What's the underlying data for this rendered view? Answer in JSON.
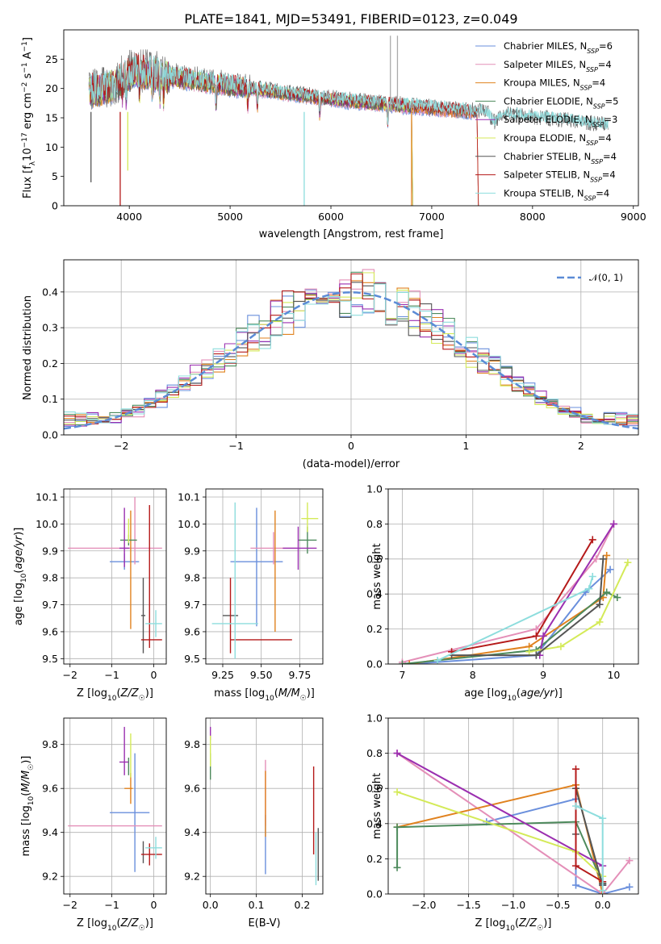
{
  "title": "PLATE=1841, MJD=53491, FIBERID=0123, z=0.049",
  "colors": {
    "Chabrier MILES": "#6a8fdc",
    "Salpeter MILES": "#e48fb8",
    "Kroupa MILES": "#e0821f",
    "Chabrier ELODIE": "#4d8a5c",
    "Salpeter ELODIE": "#9b2fb0",
    "Kroupa ELODIE": "#d4ea58",
    "Chabrier STELIB": "#555555",
    "Salpeter STELIB": "#b51a1a",
    "Kroupa STELIB": "#8ddddd"
  },
  "chart_data": [
    {
      "id": "spectrum",
      "type": "line",
      "xlabel": "wavelength [Angstrom, rest frame]",
      "ylabel": "Flux [f_λ10^-17 erg cm^-2 s^-1 A^-1]",
      "xlim": [
        3350,
        9050
      ],
      "ylim": [
        0,
        30
      ],
      "xticks": [
        4000,
        5000,
        6000,
        7000,
        8000,
        9000
      ],
      "yticks": [
        0,
        5,
        10,
        15,
        20,
        25
      ],
      "grid": false,
      "legend_position": "top-right",
      "data_range": [
        3600,
        8750
      ],
      "continuum_knots": {
        "x": [
          3600,
          3750,
          3850,
          3950,
          4050,
          4200,
          4400,
          4600,
          4800,
          5000,
          5200,
          5400,
          5600,
          5800,
          6000,
          6200,
          6400,
          6600,
          6800,
          7000,
          7200,
          7400,
          7600,
          7800,
          8000,
          8200,
          8400,
          8600,
          8750
        ],
        "y": [
          19.5,
          20.0,
          20.5,
          22.0,
          23.0,
          22.5,
          22.0,
          21.5,
          21.0,
          20.5,
          20.0,
          19.5,
          19.0,
          18.6,
          18.2,
          17.8,
          17.5,
          17.2,
          16.9,
          16.6,
          16.3,
          16.0,
          15.7,
          15.3,
          15.0,
          14.6,
          14.2,
          13.8,
          13.5
        ]
      },
      "series": [
        {
          "name": "Chabrier MILES",
          "legend": "Chabrier MILES, N_SSP=6",
          "end": 7450
        },
        {
          "name": "Salpeter MILES",
          "legend": "Salpeter MILES, N_SSP=4",
          "end": 7450
        },
        {
          "name": "Kroupa MILES",
          "legend": "Kroupa MILES, N_SSP=4",
          "end": 7450
        },
        {
          "name": "Chabrier ELODIE",
          "legend": "Chabrier ELODIE, N_SSP=5",
          "end": 6800
        },
        {
          "name": "Salpeter ELODIE",
          "legend": "Salpeter ELODIE, N_SSP=3",
          "end": 6800
        },
        {
          "name": "Kroupa ELODIE",
          "legend": "Kroupa ELODIE, N_SSP=4",
          "end": 6800
        },
        {
          "name": "Chabrier STELIB",
          "legend": "Chabrier STELIB, N_SSP=4",
          "end": 8750
        },
        {
          "name": "Salpeter STELIB",
          "legend": "Salpeter STELIB, N_SSP=4",
          "end": 7450
        },
        {
          "name": "Kroupa STELIB",
          "legend": "Kroupa STELIB, N_SSP=4",
          "end": 8750
        }
      ]
    },
    {
      "id": "residuals",
      "type": "histogram",
      "xlabel": "(data-model)/error",
      "ylabel": "Normed distribution",
      "xlim": [
        -2.5,
        2.5
      ],
      "ylim": [
        0,
        0.49
      ],
      "xticks": [
        -2,
        -1,
        0,
        1,
        2
      ],
      "yticks": [
        0.0,
        0.1,
        0.2,
        0.3,
        0.4
      ],
      "grid": true,
      "legend_position": "top-right",
      "reference": {
        "label": "𝒩(0, 1)",
        "mu": 0,
        "sigma": 1
      },
      "bins": {
        "start": -2.5,
        "width": 0.1,
        "count": 50
      },
      "series_order": [
        "Chabrier MILES",
        "Salpeter MILES",
        "Kroupa MILES",
        "Chabrier ELODIE",
        "Salpeter ELODIE",
        "Kroupa ELODIE",
        "Chabrier STELIB",
        "Salpeter STELIB",
        "Kroupa STELIB"
      ]
    },
    {
      "id": "z_age",
      "type": "errorbar",
      "xlabel": "Z [log10(Z/Z☉)]",
      "ylabel": "age  [log10(age/yr)]",
      "xlim": [
        -2.15,
        0.3
      ],
      "ylim": [
        9.48,
        10.13
      ],
      "xticks": [
        -2,
        -1,
        0
      ],
      "yticks": [
        9.5,
        9.6,
        9.7,
        9.8,
        9.9,
        10.0,
        10.1
      ],
      "grid": true,
      "points": [
        {
          "series": "Chabrier MILES",
          "x": -0.7,
          "xerr": [
            0.35,
            0.35
          ],
          "y": 9.86,
          "yerr": [
            0.03,
            0.03
          ]
        },
        {
          "series": "Salpeter MILES",
          "x": -0.45,
          "xerr": [
            1.6,
            0.65
          ],
          "y": 9.91,
          "yerr": [
            0.06,
            0.19
          ]
        },
        {
          "series": "Kroupa MILES",
          "x": -0.55,
          "xerr": [
            0.0,
            0.0
          ],
          "y": 9.85,
          "yerr": [
            0.24,
            0.2
          ]
        },
        {
          "series": "Chabrier ELODIE",
          "x": -0.6,
          "xerr": [
            0.2,
            0.2
          ],
          "y": 9.94,
          "yerr": [
            0.02,
            0.02
          ]
        },
        {
          "series": "Salpeter ELODIE",
          "x": -0.7,
          "xerr": [
            0.12,
            0.12
          ],
          "y": 9.91,
          "yerr": [
            0.07,
            0.15
          ]
        },
        {
          "series": "Kroupa ELODIE",
          "x": -0.6,
          "xerr": [
            0.0,
            0.0
          ],
          "y": 9.96,
          "yerr": [
            0.03,
            0.06
          ]
        },
        {
          "series": "Chabrier STELIB",
          "x": -0.25,
          "xerr": [
            0.05,
            0.05
          ],
          "y": 9.66,
          "yerr": [
            0.14,
            0.14
          ]
        },
        {
          "series": "Salpeter STELIB",
          "x": -0.1,
          "xerr": [
            0.2,
            0.3
          ],
          "y": 9.57,
          "yerr": [
            0.03,
            0.5
          ]
        },
        {
          "series": "Kroupa STELIB",
          "x": 0.05,
          "xerr": [
            0.25,
            0.15
          ],
          "y": 9.63,
          "yerr": [
            0.05,
            0.05
          ]
        }
      ]
    },
    {
      "id": "mass_age",
      "type": "errorbar",
      "xlabel": "mass [log10(M/M☉)]",
      "ylabel": "",
      "xlim": [
        9.14,
        9.9
      ],
      "ylim": [
        9.48,
        10.13
      ],
      "xticks": [
        9.25,
        9.5,
        9.75
      ],
      "yticks": [
        9.5,
        9.6,
        9.7,
        9.8,
        9.9,
        10.0,
        10.1
      ],
      "grid": true,
      "points": [
        {
          "series": "Chabrier MILES",
          "x": 9.47,
          "xerr": [
            0.17,
            0.17
          ],
          "y": 9.86,
          "yerr": [
            0.24,
            0.2
          ]
        },
        {
          "series": "Salpeter MILES",
          "x": 9.58,
          "xerr": [
            0.15,
            0.15
          ],
          "y": 9.91,
          "yerr": [
            0.06,
            0.06
          ]
        },
        {
          "series": "Kroupa MILES",
          "x": 9.59,
          "xerr": [
            0.0,
            0.0
          ],
          "y": 9.86,
          "yerr": [
            0.26,
            0.19
          ]
        },
        {
          "series": "Chabrier ELODIE",
          "x": 9.8,
          "xerr": [
            0.06,
            0.06
          ],
          "y": 9.94,
          "yerr": [
            0.05,
            0.05
          ]
        },
        {
          "series": "Salpeter ELODIE",
          "x": 9.74,
          "xerr": [
            0.1,
            0.12
          ],
          "y": 9.91,
          "yerr": [
            0.08,
            0.08
          ]
        },
        {
          "series": "Kroupa ELODIE",
          "x": 9.8,
          "xerr": [
            0.04,
            0.07
          ],
          "y": 10.02,
          "yerr": [
            0.05,
            0.06
          ]
        },
        {
          "series": "Chabrier STELIB",
          "x": 9.3,
          "xerr": [
            0.05,
            0.05
          ],
          "y": 9.66,
          "yerr": [
            0.0,
            0.0
          ]
        },
        {
          "series": "Salpeter STELIB",
          "x": 9.3,
          "xerr": [
            0.0,
            0.4
          ],
          "y": 9.57,
          "yerr": [
            0.05,
            0.23
          ]
        },
        {
          "series": "Kroupa STELIB",
          "x": 9.33,
          "xerr": [
            0.15,
            0.15
          ],
          "y": 9.63,
          "yerr": [
            0.13,
            0.45
          ]
        }
      ]
    },
    {
      "id": "age_weight",
      "type": "line",
      "xlabel": "age  [log10(age/yr)]",
      "ylabel": "mass weight",
      "xlim": [
        6.8,
        10.35
      ],
      "ylim": [
        0,
        1
      ],
      "xticks": [
        7,
        8,
        9,
        10
      ],
      "yticks": [
        0.0,
        0.2,
        0.4,
        0.6,
        0.8,
        1.0
      ],
      "grid": true,
      "series": [
        {
          "name": "Chabrier MILES",
          "x": [
            7.1,
            8.9,
            9.6,
            9.95
          ],
          "y": [
            0.0,
            0.05,
            0.41,
            0.54
          ]
        },
        {
          "name": "Salpeter MILES",
          "x": [
            7.0,
            8.9,
            9.75,
            10.0
          ],
          "y": [
            0.01,
            0.2,
            0.6,
            0.8
          ]
        },
        {
          "name": "Kroupa MILES",
          "x": [
            7.1,
            8.8,
            9.85,
            9.9
          ],
          "y": [
            0.0,
            0.1,
            0.38,
            0.62
          ]
        },
        {
          "name": "Chabrier ELODIE",
          "x": [
            7.0,
            8.9,
            9.9,
            10.05
          ],
          "y": [
            0.0,
            0.08,
            0.41,
            0.38
          ]
        },
        {
          "name": "Salpeter ELODIE",
          "x": [
            8.95,
            9.0,
            10.0
          ],
          "y": [
            0.05,
            0.16,
            0.8
          ]
        },
        {
          "name": "Kroupa ELODIE",
          "x": [
            8.8,
            9.25,
            9.8,
            10.2
          ],
          "y": [
            0.07,
            0.1,
            0.24,
            0.58
          ]
        },
        {
          "name": "Chabrier STELIB",
          "x": [
            7.7,
            8.9,
            9.8,
            9.85
          ],
          "y": [
            0.05,
            0.05,
            0.34,
            0.6
          ]
        },
        {
          "name": "Salpeter STELIB",
          "x": [
            7.7,
            8.9,
            9.7
          ],
          "y": [
            0.07,
            0.16,
            0.71
          ]
        },
        {
          "name": "Kroupa STELIB",
          "x": [
            7.5,
            9.65,
            9.7
          ],
          "y": [
            0.02,
            0.43,
            0.5
          ]
        }
      ]
    },
    {
      "id": "z_mass",
      "type": "errorbar",
      "xlabel": "Z [log10(Z/Z☉)]",
      "ylabel": "mass [log10(M/M☉)]",
      "xlim": [
        -2.15,
        0.3
      ],
      "ylim": [
        9.12,
        9.92
      ],
      "xticks": [
        -2,
        -1,
        0
      ],
      "yticks": [
        9.2,
        9.4,
        9.6,
        9.8
      ],
      "grid": true,
      "points": [
        {
          "series": "Chabrier MILES",
          "x": -0.45,
          "xerr": [
            0.6,
            0.35
          ],
          "y": 9.49,
          "yerr": [
            0.27,
            0.27
          ]
        },
        {
          "series": "Salpeter MILES",
          "x": -0.45,
          "xerr": [
            1.6,
            0.65
          ],
          "y": 9.43,
          "yerr": [
            0.0,
            0.0
          ]
        },
        {
          "series": "Kroupa MILES",
          "x": -0.55,
          "xerr": [
            0.15,
            0.05
          ],
          "y": 9.6,
          "yerr": [
            0.07,
            0.07
          ]
        },
        {
          "series": "Chabrier ELODIE",
          "x": -0.6,
          "xerr": [
            0.0,
            0.0
          ],
          "y": 9.7,
          "yerr": [
            0.04,
            0.04
          ]
        },
        {
          "series": "Salpeter ELODIE",
          "x": -0.7,
          "xerr": [
            0.12,
            0.1
          ],
          "y": 9.72,
          "yerr": [
            0.06,
            0.16
          ]
        },
        {
          "series": "Kroupa ELODIE",
          "x": -0.55,
          "xerr": [
            0.0,
            0.0
          ],
          "y": 9.75,
          "yerr": [
            0.1,
            0.1
          ]
        },
        {
          "series": "Chabrier STELIB",
          "x": -0.25,
          "xerr": [
            0.0,
            0.0
          ],
          "y": 9.31,
          "yerr": [
            0.05,
            0.05
          ]
        },
        {
          "series": "Salpeter STELIB",
          "x": -0.1,
          "xerr": [
            0.2,
            0.3
          ],
          "y": 9.3,
          "yerr": [
            0.05,
            0.05
          ]
        },
        {
          "series": "Kroupa STELIB",
          "x": 0.05,
          "xerr": [
            0.25,
            0.15
          ],
          "y": 9.33,
          "yerr": [
            0.05,
            0.05
          ]
        }
      ]
    },
    {
      "id": "ebv_mass",
      "type": "errorbar",
      "xlabel": "E(B-V)",
      "ylabel": "",
      "xlim": [
        -0.01,
        0.245
      ],
      "ylim": [
        9.12,
        9.92
      ],
      "xticks": [
        0.0,
        0.1,
        0.2
      ],
      "yticks": [
        9.2,
        9.4,
        9.6,
        9.8
      ],
      "grid": true,
      "points": [
        {
          "series": "Chabrier MILES",
          "x": 0.12,
          "xerr": [
            0.0,
            0.0
          ],
          "y": 9.36,
          "yerr": [
            0.15,
            0.12
          ]
        },
        {
          "series": "Salpeter MILES",
          "x": 0.12,
          "xerr": [
            0.0,
            0.0
          ],
          "y": 9.58,
          "yerr": [
            0.15,
            0.15
          ]
        },
        {
          "series": "Kroupa MILES",
          "x": 0.12,
          "xerr": [
            0.0,
            0.0
          ],
          "y": 9.53,
          "yerr": [
            0.15,
            0.15
          ]
        },
        {
          "series": "Chabrier ELODIE",
          "x": 0.0,
          "xerr": [
            0.0,
            0.0
          ],
          "y": 9.7,
          "yerr": [
            0.06,
            0.06
          ]
        },
        {
          "series": "Salpeter ELODIE",
          "x": 0.0,
          "xerr": [
            0.0,
            0.0
          ],
          "y": 9.85,
          "yerr": [
            0.03,
            0.03
          ]
        },
        {
          "series": "Kroupa ELODIE",
          "x": 0.0,
          "xerr": [
            0.0,
            0.0
          ],
          "y": 9.77,
          "yerr": [
            0.07,
            0.07
          ]
        },
        {
          "series": "Chabrier STELIB",
          "x": 0.235,
          "xerr": [
            0.0,
            0.0
          ],
          "y": 9.3,
          "yerr": [
            0.12,
            0.12
          ]
        },
        {
          "series": "Salpeter STELIB",
          "x": 0.225,
          "xerr": [
            0.0,
            0.0
          ],
          "y": 9.5,
          "yerr": [
            0.2,
            0.2
          ]
        },
        {
          "series": "Kroupa STELIB",
          "x": 0.23,
          "xerr": [
            0.0,
            0.0
          ],
          "y": 9.28,
          "yerr": [
            0.12,
            0.12
          ]
        }
      ]
    },
    {
      "id": "z_weight",
      "type": "line",
      "xlabel": "Z [log10(Z/Z☉)]",
      "ylabel": "mass weight",
      "xlim": [
        -2.4,
        0.4
      ],
      "ylim": [
        0,
        1
      ],
      "xticks": [
        -2.0,
        -1.5,
        -1.0,
        -0.5,
        0.0
      ],
      "yticks": [
        0.0,
        0.2,
        0.4,
        0.6,
        0.8,
        1.0
      ],
      "grid": true,
      "series": [
        {
          "name": "Chabrier MILES",
          "x": [
            -1.3,
            -0.3,
            -0.3,
            0.0,
            0.3
          ],
          "y": [
            0.41,
            0.54,
            0.05,
            0.0,
            0.04
          ]
        },
        {
          "name": "Salpeter MILES",
          "x": [
            -2.3,
            0.0,
            0.3
          ],
          "y": [
            0.8,
            0.0,
            0.19
          ]
        },
        {
          "name": "Kroupa MILES",
          "x": [
            -2.3,
            -0.3,
            0.0
          ],
          "y": [
            0.38,
            0.62,
            0.0
          ]
        },
        {
          "name": "Chabrier ELODIE",
          "x": [
            -2.3,
            -2.3,
            -0.3,
            0.0
          ],
          "y": [
            0.15,
            0.38,
            0.41,
            0.06
          ]
        },
        {
          "name": "Salpeter ELODIE",
          "x": [
            -2.3,
            0.0,
            0.0
          ],
          "y": [
            0.8,
            0.16,
            0.05
          ]
        },
        {
          "name": "Kroupa ELODIE",
          "x": [
            -2.3,
            -0.3,
            0.0
          ],
          "y": [
            0.58,
            0.24,
            0.1
          ]
        },
        {
          "name": "Chabrier STELIB",
          "x": [
            -0.3,
            -0.3,
            0.0,
            0.0
          ],
          "y": [
            0.34,
            0.6,
            0.05,
            0.06
          ]
        },
        {
          "name": "Salpeter STELIB",
          "x": [
            -0.3,
            -0.3,
            0.0
          ],
          "y": [
            0.71,
            0.16,
            0.07
          ]
        },
        {
          "name": "Kroupa STELIB",
          "x": [
            -0.3,
            0.0,
            0.0
          ],
          "y": [
            0.5,
            0.43,
            0.02
          ]
        }
      ]
    }
  ]
}
